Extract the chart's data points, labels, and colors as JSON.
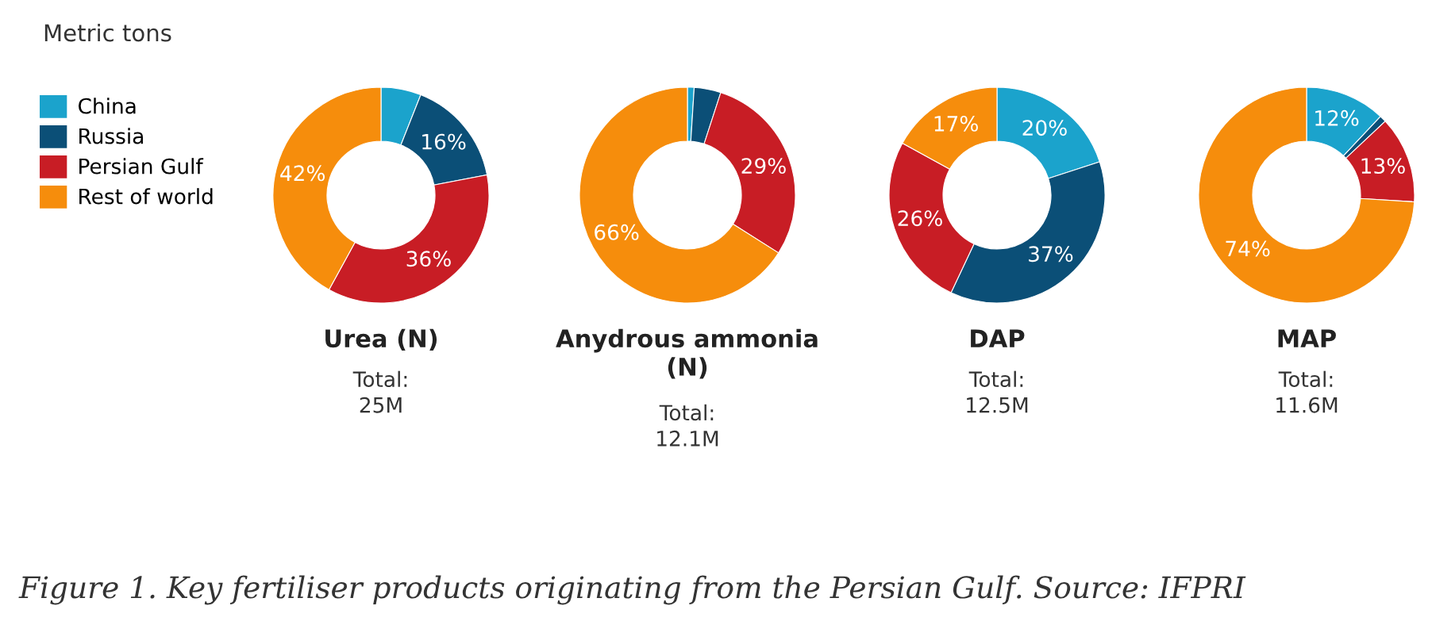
{
  "chart_data": [
    {
      "type": "donut",
      "title": "Urea (N)",
      "subtitle": "Total:\n25M",
      "legend_title": "Metric tons",
      "legend": "left",
      "categories": [
        "China",
        "Russia",
        "Persian Gulf",
        "Rest of world"
      ],
      "values": [
        6,
        16,
        36,
        42
      ],
      "value_labels": [
        null,
        "16%",
        "36%",
        "42%"
      ],
      "colors": [
        "#1ba3cc",
        "#0b4f77",
        "#c81d25",
        "#f68d0c"
      ],
      "annotations": [
        "Figure 1. Key fertiliser products originating from the Persian Gulf. Source: IFPRI"
      ]
    },
    {
      "type": "donut",
      "title": "Anydrous ammonia\n(N)",
      "subtitle": "Total:\n12.1M",
      "categories": [
        null,
        null,
        null,
        null
      ],
      "values": [
        1,
        4,
        29,
        66
      ],
      "value_labels": [
        null,
        null,
        "29%",
        "66%"
      ],
      "colors": [
        "#1ba3cc",
        "#0b4f77",
        "#c81d25",
        "#f68d0c"
      ]
    },
    {
      "type": "donut",
      "title": "DAP",
      "subtitle": "Total:\n12.5M",
      "categories": [
        null,
        null,
        null,
        null
      ],
      "values": [
        20,
        37,
        26,
        17
      ],
      "value_labels": [
        "20%",
        "37%",
        "26%",
        "17%"
      ],
      "colors": [
        "#1ba3cc",
        "#0b4f77",
        "#c81d25",
        "#f68d0c"
      ]
    },
    {
      "type": "donut",
      "title": "MAP",
      "subtitle": "Total:\n11.6M",
      "categories": [
        null,
        null,
        null,
        null
      ],
      "values": [
        12,
        1,
        13,
        74
      ],
      "value_labels": [
        "12%",
        null,
        "13%",
        "74%"
      ],
      "colors": [
        "#1ba3cc",
        "#0b4f77",
        "#c81d25",
        "#f68d0c"
      ]
    }
  ]
}
